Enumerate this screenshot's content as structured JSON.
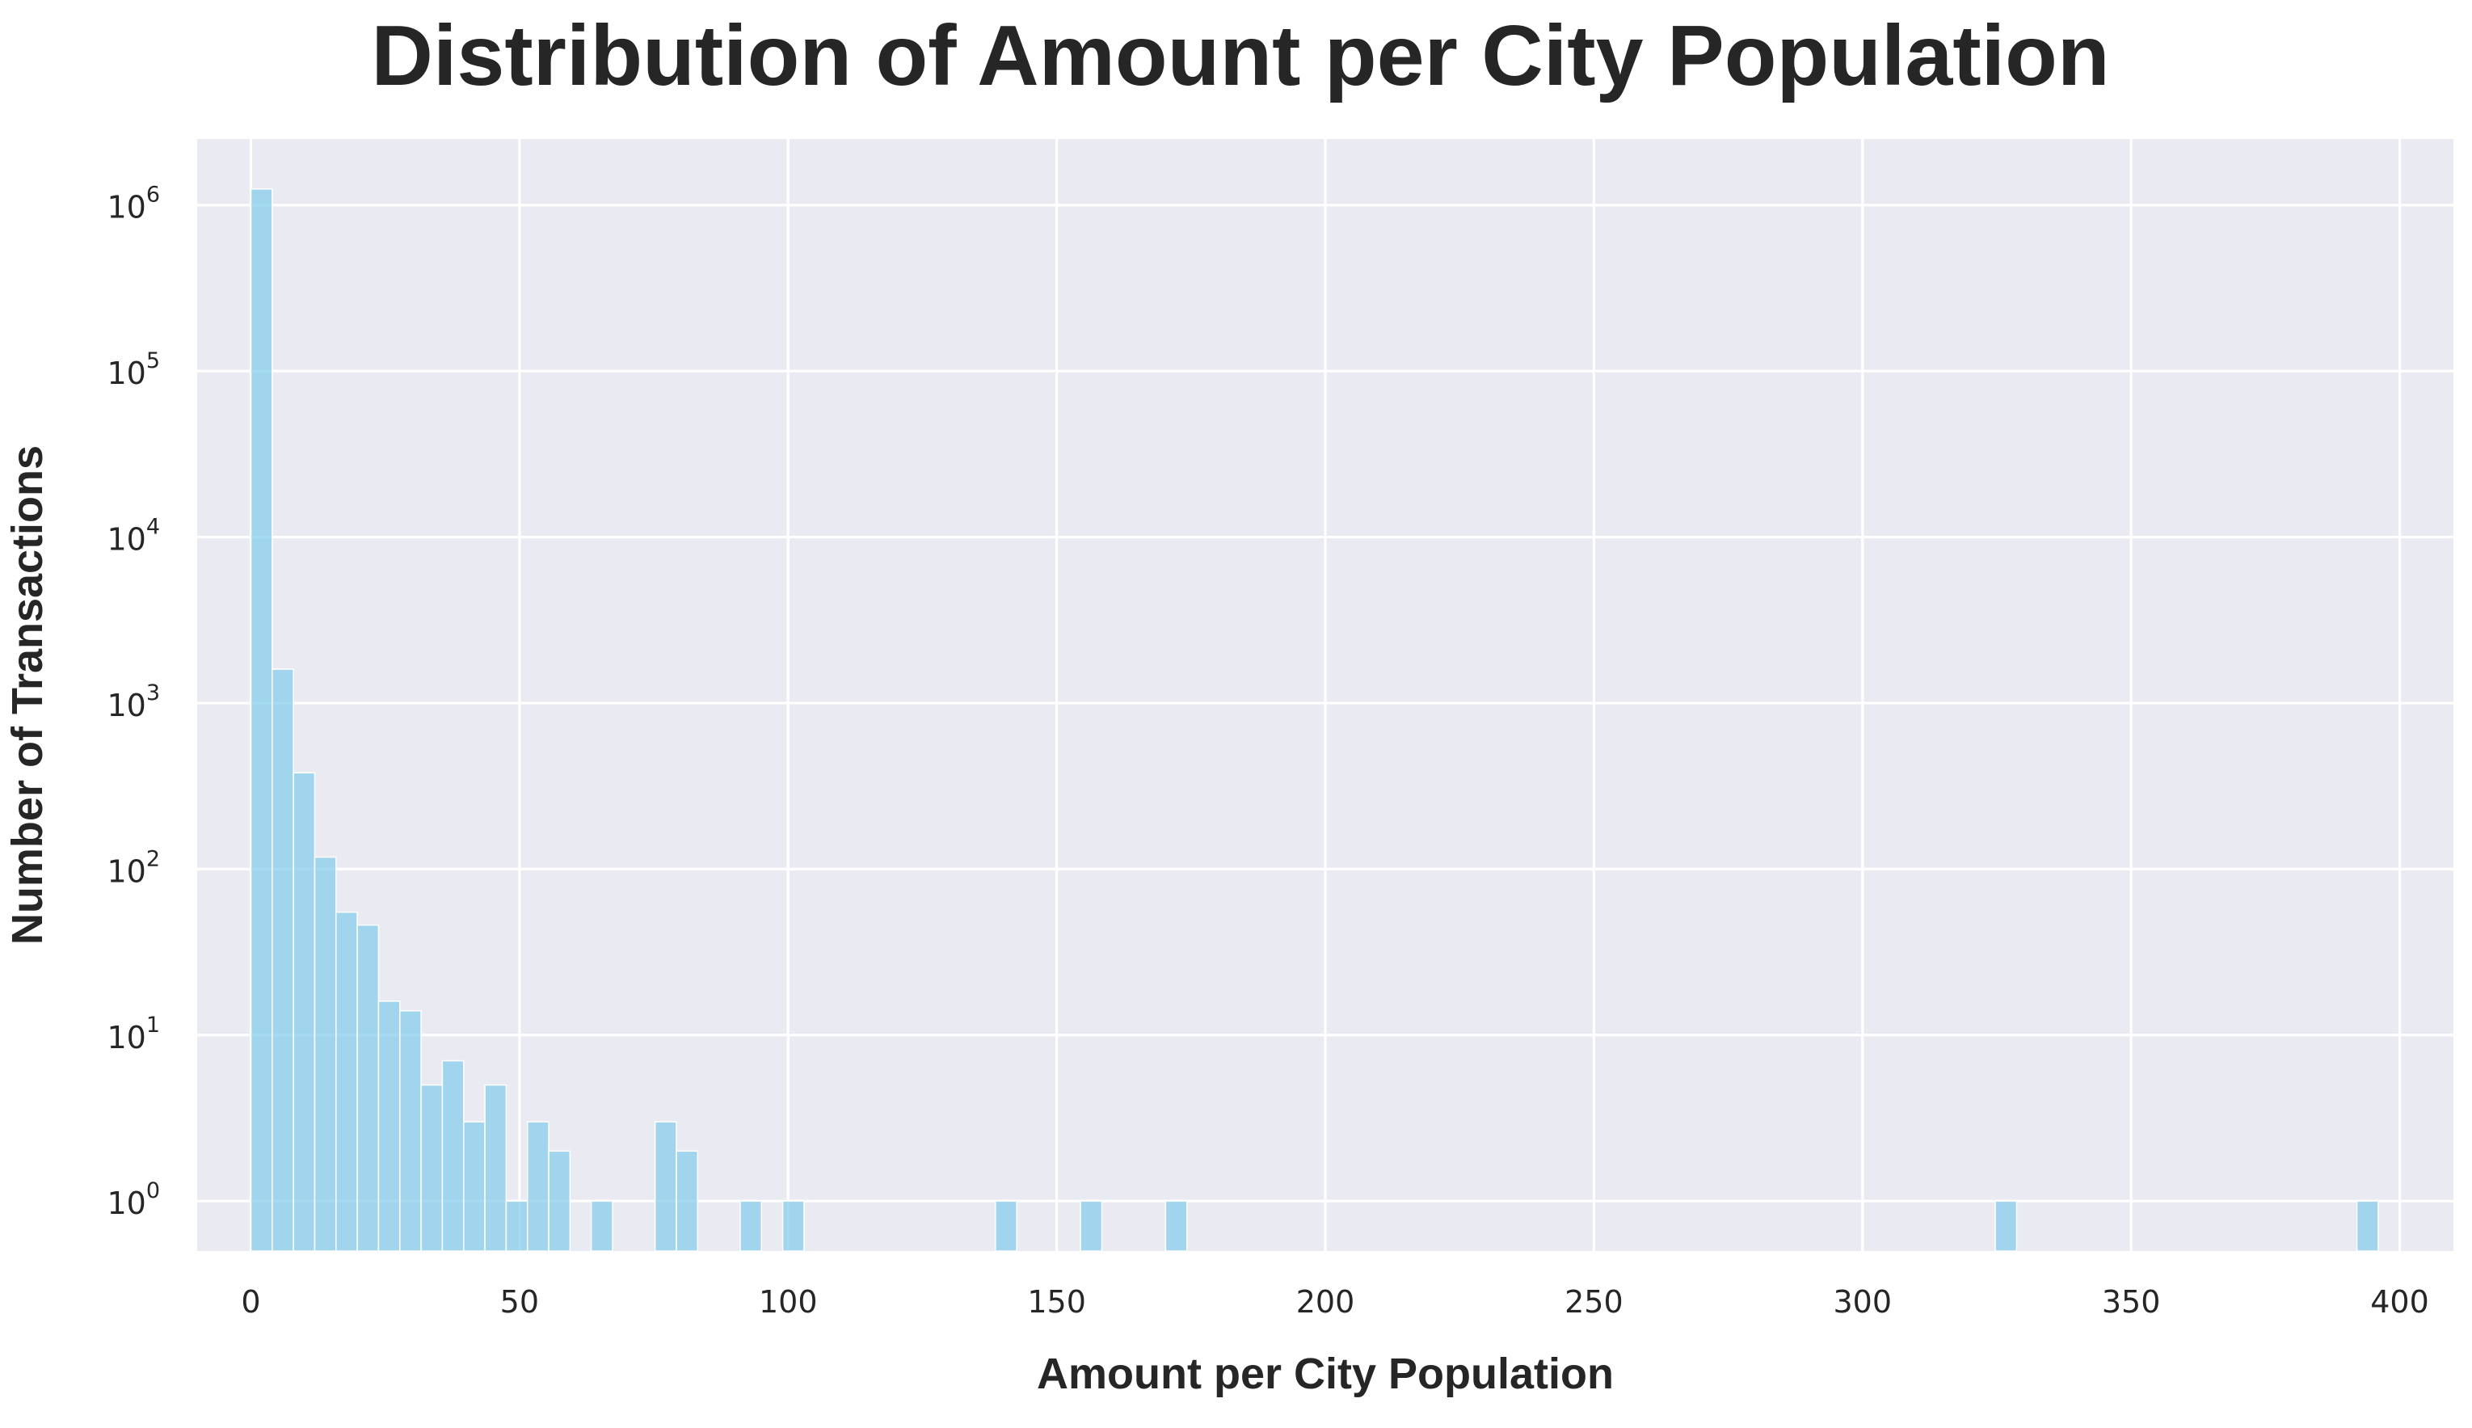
{
  "chart_data": {
    "type": "bar",
    "title": "Distribution of Amount per City Population",
    "xlabel": "Amount per City Population",
    "ylabel": "Number of Transactions",
    "yscale": "log",
    "xlim": [
      -10,
      410
    ],
    "ylim": [
      0.5,
      2500000
    ],
    "xticks": [
      0,
      50,
      100,
      150,
      200,
      250,
      300,
      350,
      400
    ],
    "xtick_labels": [
      "0",
      "50",
      "100",
      "150",
      "200",
      "250",
      "300",
      "350",
      "400"
    ],
    "yticks": [
      {
        "value": 1,
        "base": "10",
        "exp": "0"
      },
      {
        "value": 10,
        "base": "10",
        "exp": "1"
      },
      {
        "value": 100,
        "base": "10",
        "exp": "2"
      },
      {
        "value": 1000,
        "base": "10",
        "exp": "3"
      },
      {
        "value": 10000,
        "base": "10",
        "exp": "4"
      },
      {
        "value": 100000,
        "base": "10",
        "exp": "5"
      },
      {
        "value": 1000000,
        "base": "10",
        "exp": "6"
      }
    ],
    "grid": true,
    "bar_color": "#87ceeb",
    "bin_width": 3.96,
    "bins_start": 0,
    "bins": [
      {
        "x": 0,
        "count": 1250000
      },
      {
        "x": 3.96,
        "count": 1600
      },
      {
        "x": 7.92,
        "count": 380
      },
      {
        "x": 11.88,
        "count": 118
      },
      {
        "x": 15.84,
        "count": 55
      },
      {
        "x": 19.8,
        "count": 46
      },
      {
        "x": 23.76,
        "count": 16
      },
      {
        "x": 27.72,
        "count": 14
      },
      {
        "x": 31.68,
        "count": 5
      },
      {
        "x": 35.64,
        "count": 7
      },
      {
        "x": 39.6,
        "count": 3
      },
      {
        "x": 43.56,
        "count": 5
      },
      {
        "x": 47.52,
        "count": 1
      },
      {
        "x": 51.48,
        "count": 3
      },
      {
        "x": 55.44,
        "count": 2
      },
      {
        "x": 63.36,
        "count": 1
      },
      {
        "x": 75.24,
        "count": 3
      },
      {
        "x": 79.2,
        "count": 2
      },
      {
        "x": 91.08,
        "count": 1
      },
      {
        "x": 99.0,
        "count": 1
      },
      {
        "x": 138.6,
        "count": 1
      },
      {
        "x": 154.44,
        "count": 1
      },
      {
        "x": 170.28,
        "count": 1
      },
      {
        "x": 324.72,
        "count": 1
      },
      {
        "x": 392.04,
        "count": 1
      }
    ]
  }
}
